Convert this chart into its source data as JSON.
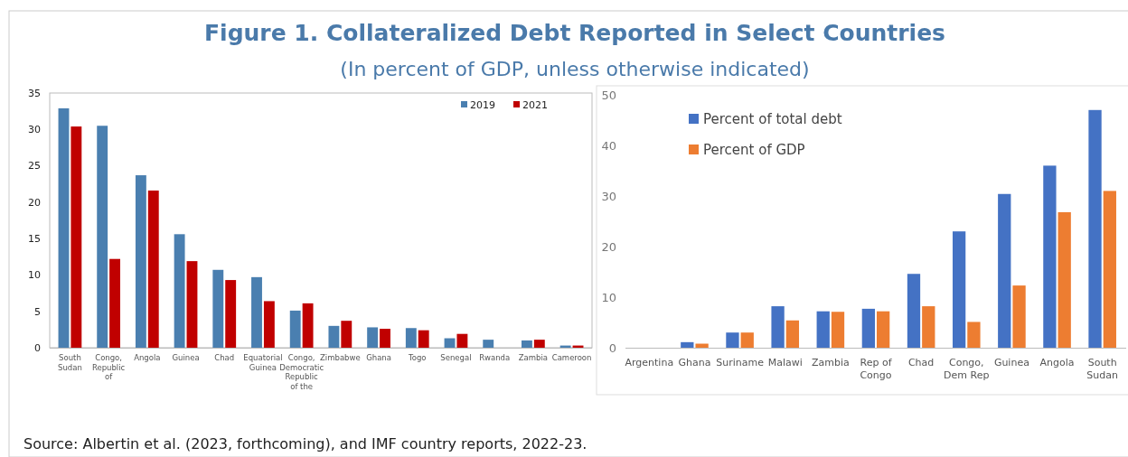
{
  "chart_data": [
    {
      "type": "bar",
      "title": "Figure 1. Collateralized Debt Reported in Select Countries",
      "subtitle": "(In percent of GDP, unless otherwise indicated)",
      "annotations": [
        "Source: Albertin et al. (2023, forthcoming), and IMF country reports, 2022-23."
      ],
      "categories": [
        "South Sudan",
        "Congo, Republic of",
        "Angola",
        "Guinea",
        "Chad",
        "Equatorial Guinea",
        "Congo, Democratic Republic of the",
        "Zimbabwe",
        "Ghana",
        "Togo",
        "Senegal",
        "Rwanda",
        "Zambia",
        "Cameroon"
      ],
      "series": [
        {
          "name": "2019",
          "color": "#4a7fb0",
          "values": [
            32.9,
            30.5,
            23.7,
            15.6,
            10.7,
            9.7,
            5.1,
            3.0,
            2.8,
            2.7,
            1.3,
            1.1,
            1.0,
            0.3
          ]
        },
        {
          "name": "2021",
          "color": "#c00000",
          "values": [
            30.4,
            12.2,
            21.6,
            11.9,
            9.3,
            6.4,
            6.1,
            3.7,
            2.6,
            2.4,
            1.9,
            null,
            1.1,
            0.3
          ]
        }
      ],
      "ylim": [
        0,
        35
      ],
      "yticks": [
        0,
        5,
        10,
        15,
        20,
        25,
        30,
        35
      ],
      "legend": "top right"
    },
    {
      "type": "bar",
      "categories": [
        "Argentina",
        "Ghana",
        "Suriname",
        "Malawi",
        "Zambia",
        "Rep of Congo",
        "Chad",
        "Congo, Dem Rep",
        "Guinea",
        "Angola",
        "South Sudan"
      ],
      "series": [
        {
          "name": "Percent of total debt",
          "color": "#4472c4",
          "values": [
            0,
            1.1,
            3.0,
            8.2,
            7.2,
            7.7,
            14.6,
            23.0,
            30.4,
            36.0,
            47.0
          ]
        },
        {
          "name": "Percent of GDP",
          "color": "#ed7d31",
          "values": [
            0,
            0.8,
            3.0,
            5.4,
            7.1,
            7.2,
            8.2,
            5.1,
            12.3,
            26.8,
            31.0
          ]
        }
      ],
      "ylim": [
        0,
        50
      ],
      "yticks": [
        0,
        10,
        20,
        30,
        40,
        50
      ],
      "legend": "top left"
    }
  ]
}
